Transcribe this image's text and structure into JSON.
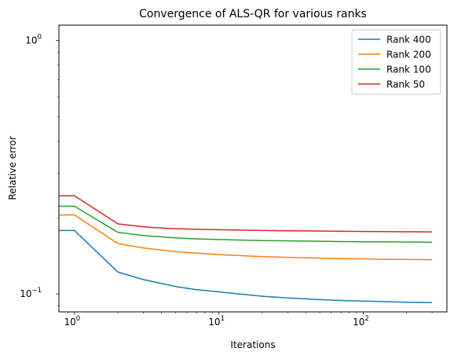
{
  "chart_data": {
    "type": "line",
    "title": "Convergence of ALS-QR for various ranks",
    "xlabel": "Iterations",
    "ylabel": "Relative error",
    "xscale": "log",
    "yscale": "log",
    "xlim": [
      0.78,
      380
    ],
    "ylim": [
      0.085,
      1.15
    ],
    "grid": false,
    "legend": "top-right",
    "x_ticks": [
      {
        "value": 1,
        "base": "10",
        "exp": "0"
      },
      {
        "value": 10,
        "base": "10",
        "exp": "1"
      },
      {
        "value": 100,
        "base": "10",
        "exp": "2"
      }
    ],
    "y_ticks": [
      {
        "value": 0.1,
        "base": "10",
        "exp": "−1"
      },
      {
        "value": 1,
        "base": "10",
        "exp": "0"
      }
    ],
    "x": [
      0,
      1,
      2,
      3,
      4,
      5,
      7,
      10,
      15,
      20,
      30,
      50,
      70,
      100,
      150,
      200,
      300
    ],
    "series": [
      {
        "name": "Rank 400",
        "color": "#1f77b4",
        "values": [
          0.178,
          0.178,
          0.122,
          0.114,
          0.11,
          0.107,
          0.104,
          0.102,
          0.0995,
          0.098,
          0.0965,
          0.095,
          0.0943,
          0.0937,
          0.0932,
          0.0928,
          0.0925
        ]
      },
      {
        "name": "Rank 200",
        "color": "#ff7f0e",
        "values": [
          0.205,
          0.205,
          0.158,
          0.152,
          0.149,
          0.147,
          0.145,
          0.143,
          0.1415,
          0.1405,
          0.1395,
          0.1385,
          0.138,
          0.1375,
          0.137,
          0.1368,
          0.1365
        ]
      },
      {
        "name": "Rank 100",
        "color": "#2ca02c",
        "values": [
          0.222,
          0.222,
          0.175,
          0.17,
          0.168,
          0.1665,
          0.165,
          0.164,
          0.163,
          0.1625,
          0.162,
          0.1615,
          0.161,
          0.1607,
          0.1605,
          0.1603,
          0.16
        ]
      },
      {
        "name": "Rank 50",
        "color": "#d62728",
        "values": [
          0.244,
          0.244,
          0.189,
          0.184,
          0.182,
          0.181,
          0.18,
          0.1793,
          0.1786,
          0.1781,
          0.1776,
          0.1771,
          0.1768,
          0.1765,
          0.1762,
          0.176,
          0.1758
        ]
      }
    ]
  }
}
